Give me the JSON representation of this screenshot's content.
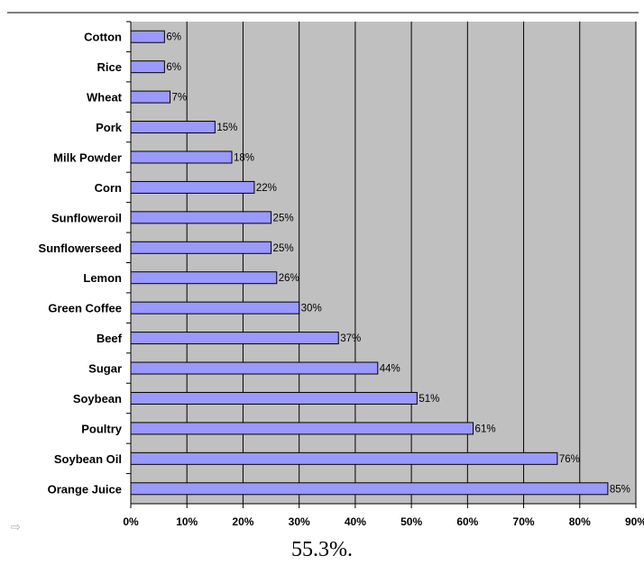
{
  "colors": {
    "plot_background": "#c0c0c0",
    "bar_fill": "#9999ff",
    "bar_stroke": "#000000",
    "gridline": "#000000"
  },
  "chart_data": {
    "type": "bar",
    "orientation": "horizontal",
    "categories": [
      "Cotton",
      "Rice",
      "Wheat",
      "Pork",
      "Milk Powder",
      "Corn",
      "Sunfloweroil",
      "Sunflowerseed",
      "Lemon",
      "Green Coffee",
      "Beef",
      "Sugar",
      "Soybean",
      "Poultry",
      "Soybean Oil",
      "Orange Juice"
    ],
    "values": [
      6,
      6,
      7,
      15,
      18,
      22,
      25,
      25,
      26,
      30,
      37,
      44,
      51,
      61,
      76,
      85
    ],
    "data_labels": [
      "6%",
      "6%",
      "7%",
      "15%",
      "18%",
      "22%",
      "25%",
      "25%",
      "26%",
      "30%",
      "37%",
      "44%",
      "51%",
      "61%",
      "76%",
      "85%"
    ],
    "xlim": [
      0,
      90
    ],
    "x_ticks": [
      0,
      10,
      20,
      30,
      40,
      50,
      60,
      70,
      80,
      90
    ],
    "x_tick_labels": [
      "0%",
      "10%",
      "20%",
      "30%",
      "40%",
      "50%",
      "60%",
      "70%",
      "80%",
      "90%"
    ],
    "grid": "vertical",
    "legend": "none"
  },
  "footer": {
    "text": "55.3%."
  },
  "icons": {
    "corner": "arrow-right-icon"
  }
}
